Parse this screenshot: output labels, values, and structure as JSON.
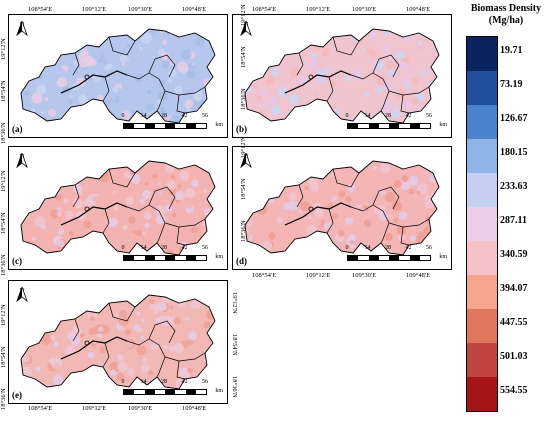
{
  "legend": {
    "title_line1": "Biomass Density",
    "title_line2": "(Mg/ha)",
    "labels": [
      "19.71",
      "73.19",
      "126.67",
      "180.15",
      "233.63",
      "287.11",
      "340.59",
      "394.07",
      "447.55",
      "501.03",
      "554.55"
    ],
    "colors": [
      "#0b2461",
      "#22509f",
      "#4c83cc",
      "#8fb4e8",
      "#c6cff2",
      "#eccde8",
      "#f6c2c9",
      "#f5a58c",
      "#e2775f",
      "#c2463f",
      "#a51417"
    ]
  },
  "panels": [
    {
      "label": "(a)",
      "tint": [
        "#b7c6ec",
        "#c9d3f2",
        "#e9cde6",
        "#a8bde8"
      ]
    },
    {
      "label": "(b)",
      "tint": [
        "#f0c4cf",
        "#e7c8e6",
        "#cfd6f1",
        "#f3b9bd"
      ]
    },
    {
      "label": "(c)",
      "tint": [
        "#f3b3b3",
        "#f0c5cf",
        "#e5cde8",
        "#ef9e94"
      ]
    },
    {
      "label": "(d)",
      "tint": [
        "#f3b5b5",
        "#f1c6d0",
        "#e3cce8",
        "#ef9f95"
      ]
    },
    {
      "label": "(e)",
      "tint": [
        "#f2b8b6",
        "#f1c7d1",
        "#e5cde8",
        "#eda198"
      ]
    }
  ],
  "north_label": "N",
  "scalebar": {
    "ticks": [
      "0",
      "14",
      "28",
      "42",
      "56"
    ],
    "unit": "km"
  },
  "lon_labels": [
    "108°54′E",
    "109°12′E",
    "109°30′E",
    "109°48′E"
  ],
  "lat_labels": [
    "19°12′N",
    "18°54′N",
    "18°36′N"
  ]
}
